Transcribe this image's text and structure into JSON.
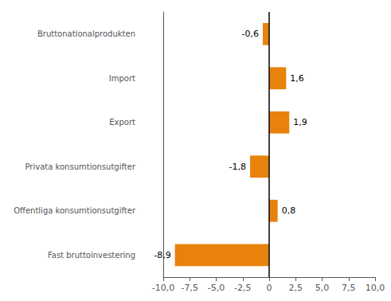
{
  "chart_data": {
    "type": "bar",
    "orientation": "horizontal",
    "categories": [
      "Bruttonationalprodukten",
      "Import",
      "Export",
      "Privata konsumtionsutgifter",
      "Offentliga konsumtionsutgifter",
      "Fast bruttoinvestering"
    ],
    "values": [
      -0.6,
      1.6,
      1.9,
      -1.8,
      0.8,
      -8.9
    ],
    "value_labels": [
      "-0,6",
      "1,6",
      "1,9",
      "-1,8",
      "0,8",
      "-8,9"
    ],
    "data_labels": true,
    "color": "#E8820C",
    "xlim": [
      -10,
      10
    ],
    "xticks": [
      {
        "value": -10,
        "label": "-10,0"
      },
      {
        "value": -7.5,
        "label": "-7,5"
      },
      {
        "value": -5.0,
        "label": "-5,0"
      },
      {
        "value": -2.5,
        "label": "-2,5"
      },
      0,
      {
        "value": 2.5,
        "label": "2,5"
      },
      {
        "value": 5.0,
        "label": "5,0"
      },
      {
        "value": 7.5,
        "label": "7,5"
      },
      {
        "value": 10,
        "label": "10,0"
      }
    ],
    "grid": false
  }
}
